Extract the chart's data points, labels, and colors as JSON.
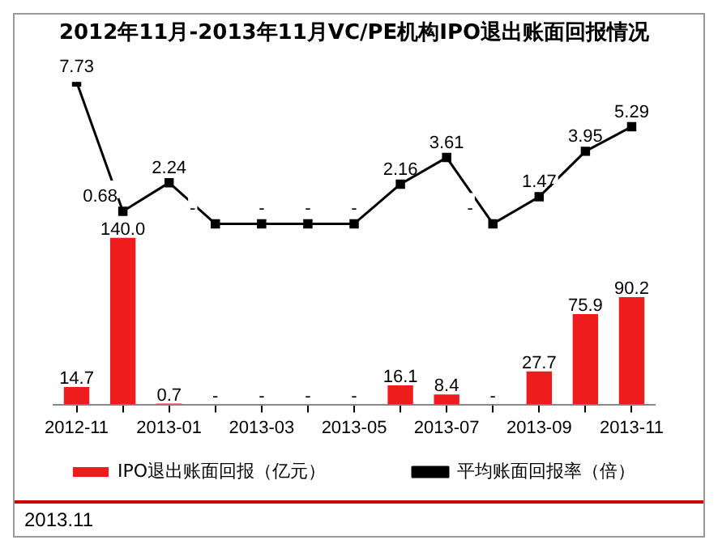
{
  "chart_data": [
    {
      "type": "line",
      "title": "2012年11月-2013年11月VC/PE机构IPO退出账面回报情况",
      "categories": [
        "2012-11",
        null,
        "2013-01",
        null,
        "2013-03",
        null,
        "2013-05",
        null,
        "2013-07",
        null,
        "2013-09",
        null,
        "2013-11"
      ],
      "series": [
        {
          "name": "平均账面回报率（倍）",
          "color": "#000000",
          "values": [
            7.73,
            0.68,
            2.24,
            0,
            0,
            0,
            0,
            2.16,
            3.61,
            0,
            1.47,
            3.95,
            5.29
          ],
          "value_labels": [
            "7.73",
            "0.68",
            "2.24",
            "-",
            "-",
            "-",
            "-",
            "2.16",
            "3.61",
            "-",
            "1.47",
            "3.95",
            "5.29"
          ]
        }
      ],
      "marker": "square",
      "grid": false,
      "legend": "bottom",
      "tick_labels": false
    },
    {
      "type": "bar",
      "categories": [
        "2012-11",
        null,
        "2013-01",
        null,
        "2013-03",
        null,
        "2013-05",
        null,
        "2013-07",
        null,
        "2013-09",
        null,
        "2013-11"
      ],
      "series": [
        {
          "name": "IPO退出账面回报（亿元）",
          "color": "#ee1c1c",
          "values": [
            14.7,
            140.0,
            0.7,
            0,
            0,
            0,
            0,
            16.1,
            8.4,
            0,
            27.7,
            75.9,
            90.2
          ],
          "value_labels": [
            "14.7",
            "140.0",
            "0.7",
            "-",
            "-",
            "-",
            "-",
            "16.1",
            "8.4",
            "-",
            "27.7",
            "75.9",
            "90.2"
          ]
        }
      ],
      "grid": false,
      "legend": "bottom",
      "tick_labels": "x",
      "annotations": [
        "2013.11"
      ]
    }
  ]
}
